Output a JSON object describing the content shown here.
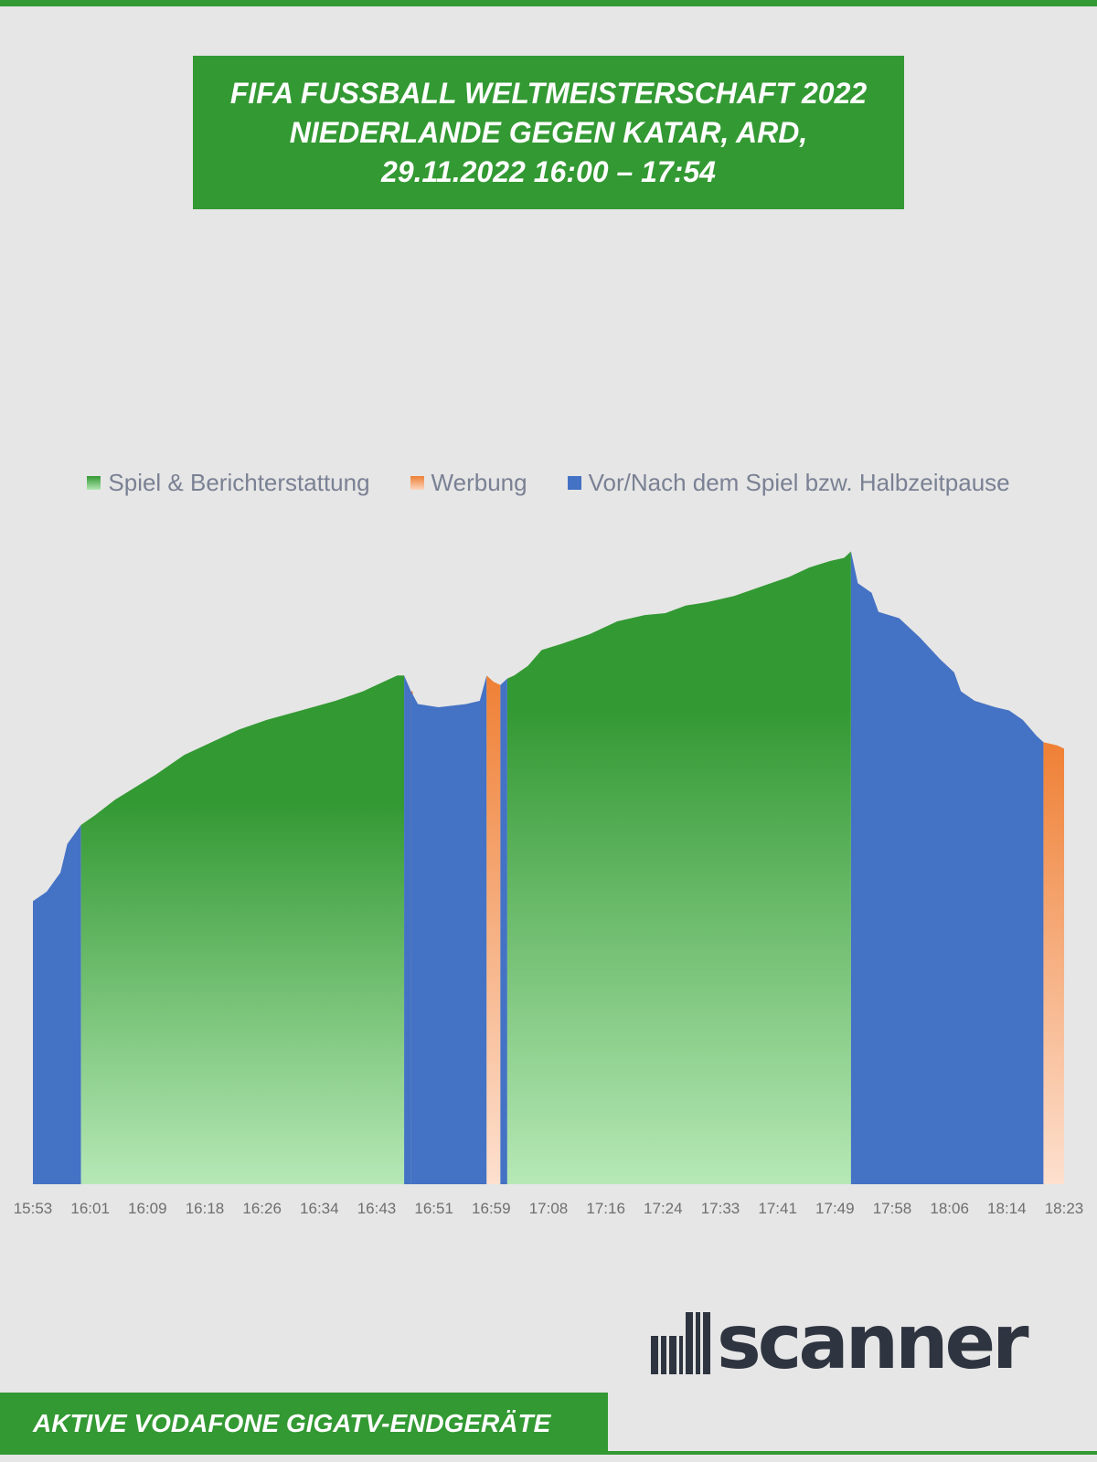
{
  "title": {
    "lines": [
      "FIFA FUSSBALL WELTMEISTERSCHAFT 2022",
      "NIEDERLANDE GEGEN KATAR, ARD,",
      "29.11.2022 16:00 – 17:54"
    ]
  },
  "legend": [
    {
      "label": "Spiel & Berichterstattung",
      "color": "#339933"
    },
    {
      "label": "Werbung",
      "color": "#ef8035"
    },
    {
      "label": "Vor/Nach dem Spiel bzw. Halbzeitpause",
      "color": "#4472c4"
    }
  ],
  "footer": {
    "text": "AKTIVE VODAFONE GIGATV-ENDGERÄTE"
  },
  "logo": {
    "text": "scanner",
    "icon": "ad-barcode-logo"
  },
  "chart_data": {
    "type": "area",
    "x_ticks": [
      "15:53",
      "16:01",
      "16:09",
      "16:18",
      "16:26",
      "16:34",
      "16:43",
      "16:51",
      "16:59",
      "17:08",
      "17:16",
      "17:24",
      "17:33",
      "17:41",
      "17:49",
      "17:58",
      "18:06",
      "18:14",
      "18:23"
    ],
    "x_start": "15:53",
    "x_end": "18:23",
    "ylim": [
      0,
      100
    ],
    "colors": {
      "spiel": "#339933",
      "werbung": "#ef8035",
      "pause": "#4472c4"
    },
    "points": [
      [
        "15:53",
        44.5
      ],
      [
        "15:55",
        46.0
      ],
      [
        "15:57",
        49.0
      ],
      [
        "15:58",
        53.5
      ],
      [
        "16:00",
        56.5
      ],
      [
        "16:02",
        58.0
      ],
      [
        "16:05",
        60.5
      ],
      [
        "16:08",
        62.5
      ],
      [
        "16:11",
        64.5
      ],
      [
        "16:15",
        67.5
      ],
      [
        "16:19",
        69.5
      ],
      [
        "16:23",
        71.5
      ],
      [
        "16:27",
        73.0
      ],
      [
        "16:32",
        74.5
      ],
      [
        "16:37",
        76.0
      ],
      [
        "16:41",
        77.5
      ],
      [
        "16:44",
        79.0
      ],
      [
        "16:46",
        80.0
      ],
      [
        "16:47",
        80.0
      ],
      [
        "16:48",
        77.5
      ],
      [
        "16:49",
        75.5
      ],
      [
        "16:52",
        75.0
      ],
      [
        "16:56",
        75.5
      ],
      [
        "16:58",
        76.0
      ],
      [
        "16:59",
        80.0
      ],
      [
        "17:00",
        79.0
      ],
      [
        "17:01",
        78.5
      ],
      [
        "17:02",
        79.5
      ],
      [
        "17:03",
        80.0
      ],
      [
        "17:05",
        81.5
      ],
      [
        "17:07",
        84.0
      ],
      [
        "17:10",
        85.0
      ],
      [
        "17:14",
        86.5
      ],
      [
        "17:18",
        88.5
      ],
      [
        "17:22",
        89.5
      ],
      [
        "17:25",
        89.8
      ],
      [
        "17:28",
        91.0
      ],
      [
        "17:31",
        91.5
      ],
      [
        "17:35",
        92.5
      ],
      [
        "17:39",
        94.0
      ],
      [
        "17:43",
        95.5
      ],
      [
        "17:46",
        97.0
      ],
      [
        "17:49",
        98.0
      ],
      [
        "17:51",
        98.5
      ],
      [
        "17:52",
        99.5
      ],
      [
        "17:53",
        94.5
      ],
      [
        "17:55",
        93.0
      ],
      [
        "17:56",
        90.0
      ],
      [
        "17:59",
        89.0
      ],
      [
        "18:02",
        86.0
      ],
      [
        "18:05",
        82.5
      ],
      [
        "18:07",
        80.5
      ],
      [
        "18:08",
        77.5
      ],
      [
        "18:10",
        76.0
      ],
      [
        "18:13",
        75.0
      ],
      [
        "18:15",
        74.5
      ],
      [
        "18:17",
        73.0
      ],
      [
        "18:19",
        70.5
      ],
      [
        "18:20",
        69.5
      ],
      [
        "18:22",
        69.0
      ],
      [
        "18:23",
        68.5
      ]
    ],
    "segments": [
      {
        "from": "15:53",
        "to": "16:00",
        "category": "pause"
      },
      {
        "from": "16:00",
        "to": "16:47",
        "category": "spiel"
      },
      {
        "from": "16:47",
        "to": "16:48",
        "category": "pause"
      },
      {
        "from": "16:48",
        "to": "16:48",
        "category": "werbung"
      },
      {
        "from": "16:48",
        "to": "16:59",
        "category": "pause"
      },
      {
        "from": "16:59",
        "to": "17:01",
        "category": "werbung"
      },
      {
        "from": "17:01",
        "to": "17:02",
        "category": "pause"
      },
      {
        "from": "17:02",
        "to": "17:52",
        "category": "spiel"
      },
      {
        "from": "17:52",
        "to": "18:20",
        "category": "pause"
      },
      {
        "from": "18:20",
        "to": "18:23",
        "category": "werbung"
      }
    ]
  }
}
